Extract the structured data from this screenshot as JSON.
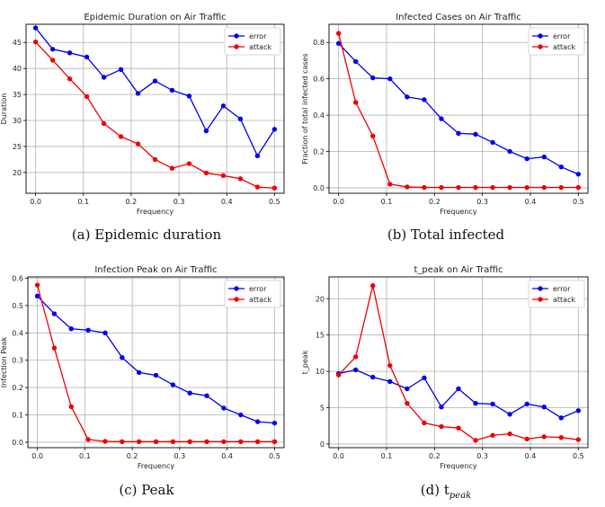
{
  "colors": {
    "error": "#0000ee",
    "attack": "#ee0000",
    "grid": "#b0b0b0",
    "axis": "#000000"
  },
  "chart_data": [
    {
      "type": "line",
      "title": "Epidemic Duration on Air Traffic",
      "xlabel": "Frequency",
      "ylabel": "Duration",
      "caption": "(a) Epidemic duration",
      "xlim": [
        -0.02,
        0.52
      ],
      "ylim": [
        16,
        48.5
      ],
      "xticks": [
        0.0,
        0.1,
        0.2,
        0.3,
        0.4,
        0.5
      ],
      "xtick_labels": [
        "0.0",
        "0.1",
        "0.2",
        "0.3",
        "0.4",
        "0.5"
      ],
      "yticks": [
        20,
        25,
        30,
        35,
        40,
        45
      ],
      "ytick_labels": [
        "20",
        "25",
        "30",
        "35",
        "40",
        "45"
      ],
      "grid": true,
      "legend": "top-right",
      "x": [
        0.0,
        0.0357,
        0.0714,
        0.1071,
        0.1429,
        0.1786,
        0.2143,
        0.25,
        0.2857,
        0.3214,
        0.3571,
        0.3929,
        0.4286,
        0.4643,
        0.5
      ],
      "series": [
        {
          "name": "error",
          "values": [
            47.8,
            43.7,
            43.0,
            42.2,
            38.3,
            39.8,
            35.2,
            37.6,
            35.8,
            34.7,
            28.0,
            32.8,
            30.3,
            23.2,
            28.3
          ]
        },
        {
          "name": "attack",
          "values": [
            45.1,
            41.6,
            38.0,
            34.6,
            29.4,
            26.9,
            25.5,
            22.5,
            20.8,
            21.7,
            19.9,
            19.4,
            18.8,
            17.2,
            17.0
          ]
        }
      ]
    },
    {
      "type": "line",
      "title": "Infected Cases on Air Traffic",
      "xlabel": "Frequency",
      "ylabel": "Fraction of total infected cases",
      "caption": "(b) Total infected",
      "xlim": [
        -0.02,
        0.52
      ],
      "ylim": [
        -0.03,
        0.9
      ],
      "xticks": [
        0.0,
        0.1,
        0.2,
        0.3,
        0.4,
        0.5
      ],
      "xtick_labels": [
        "0.0",
        "0.1",
        "0.2",
        "0.3",
        "0.4",
        "0.5"
      ],
      "yticks": [
        0.0,
        0.2,
        0.4,
        0.6,
        0.8
      ],
      "ytick_labels": [
        "0.0",
        "0.2",
        "0.4",
        "0.6",
        "0.8"
      ],
      "grid": true,
      "legend": "top-right",
      "x": [
        0.0,
        0.0357,
        0.0714,
        0.1071,
        0.1429,
        0.1786,
        0.2143,
        0.25,
        0.2857,
        0.3214,
        0.3571,
        0.3929,
        0.4286,
        0.4643,
        0.5
      ],
      "series": [
        {
          "name": "error",
          "values": [
            0.795,
            0.695,
            0.605,
            0.6,
            0.5,
            0.485,
            0.38,
            0.3,
            0.295,
            0.25,
            0.2,
            0.16,
            0.17,
            0.115,
            0.075
          ]
        },
        {
          "name": "attack",
          "values": [
            0.85,
            0.47,
            0.285,
            0.02,
            0.005,
            0.002,
            0.002,
            0.002,
            0.002,
            0.002,
            0.002,
            0.002,
            0.002,
            0.002,
            0.002
          ]
        }
      ]
    },
    {
      "type": "line",
      "title": "Infection Peak on Air Traffic",
      "xlabel": "Frequency",
      "ylabel": "Infection Peak",
      "caption": "(c) Peak",
      "xlim": [
        -0.02,
        0.52
      ],
      "ylim": [
        -0.02,
        0.605
      ],
      "xticks": [
        0.0,
        0.1,
        0.2,
        0.3,
        0.4,
        0.5
      ],
      "xtick_labels": [
        "0.0",
        "0.1",
        "0.2",
        "0.3",
        "0.4",
        "0.5"
      ],
      "yticks": [
        0.0,
        0.1,
        0.2,
        0.3,
        0.4,
        0.5,
        0.6
      ],
      "ytick_labels": [
        "0.0",
        "0.1",
        "0.2",
        "0.3",
        "0.4",
        "0.5",
        "0.6"
      ],
      "grid": true,
      "legend": "top-right",
      "x": [
        0.0,
        0.0357,
        0.0714,
        0.1071,
        0.1429,
        0.1786,
        0.2143,
        0.25,
        0.2857,
        0.3214,
        0.3571,
        0.3929,
        0.4286,
        0.4643,
        0.5
      ],
      "series": [
        {
          "name": "error",
          "values": [
            0.535,
            0.47,
            0.415,
            0.41,
            0.4,
            0.31,
            0.255,
            0.245,
            0.21,
            0.18,
            0.17,
            0.125,
            0.1,
            0.075,
            0.07
          ]
        },
        {
          "name": "attack",
          "values": [
            0.575,
            0.345,
            0.13,
            0.01,
            0.003,
            0.002,
            0.002,
            0.002,
            0.002,
            0.002,
            0.002,
            0.002,
            0.002,
            0.002,
            0.002
          ]
        }
      ]
    },
    {
      "type": "line",
      "title": "t_peak on Air Traffic",
      "xlabel": "Frequency",
      "ylabel": "t_peak",
      "caption": "(d) t",
      "caption_sub": "peak",
      "xlim": [
        -0.02,
        0.52
      ],
      "ylim": [
        -0.5,
        23
      ],
      "xticks": [
        0.0,
        0.1,
        0.2,
        0.3,
        0.4,
        0.5
      ],
      "xtick_labels": [
        "0.0",
        "0.1",
        "0.2",
        "0.3",
        "0.4",
        "0.5"
      ],
      "yticks": [
        0,
        5,
        10,
        15,
        20
      ],
      "ytick_labels": [
        "0",
        "5",
        "10",
        "15",
        "20"
      ],
      "grid": true,
      "legend": "top-right",
      "x": [
        0.0,
        0.0357,
        0.0714,
        0.1071,
        0.1429,
        0.1786,
        0.2143,
        0.25,
        0.2857,
        0.3214,
        0.3571,
        0.3929,
        0.4286,
        0.4643,
        0.5
      ],
      "series": [
        {
          "name": "error",
          "values": [
            9.7,
            10.2,
            9.2,
            8.6,
            7.6,
            9.1,
            5.1,
            7.6,
            5.6,
            5.5,
            4.1,
            5.5,
            5.1,
            3.6,
            4.6
          ]
        },
        {
          "name": "attack",
          "values": [
            9.5,
            12.0,
            21.8,
            10.8,
            5.6,
            2.9,
            2.4,
            2.2,
            0.5,
            1.2,
            1.4,
            0.7,
            1.0,
            0.9,
            0.6
          ]
        }
      ]
    }
  ]
}
